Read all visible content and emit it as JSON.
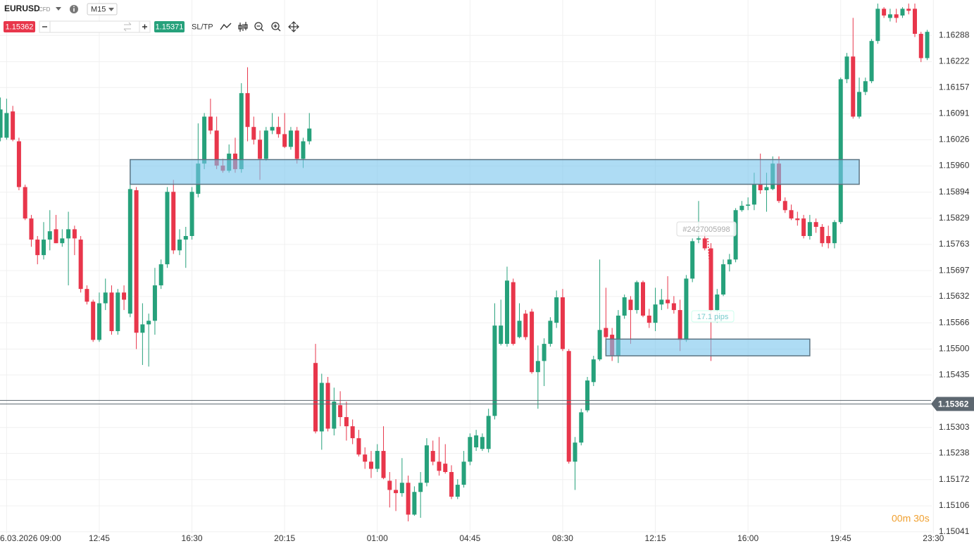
{
  "chart_data": {
    "type": "candlestick",
    "symbol": "EURUSD",
    "symbol_tag": "CFD",
    "timeframe": "M15",
    "bid": 1.15362,
    "ask": 1.15371,
    "sl_tp": "SL/TP",
    "timer": "00m 30s",
    "order_label": "#2427005998",
    "order_pips": "17.1 pips",
    "up_color": "#26a17b",
    "down_color": "#e8364b",
    "grid": true,
    "categories": [
      null,
      "6.03.2026 09:00",
      null,
      null,
      null,
      null,
      null,
      null,
      null,
      null,
      null,
      null,
      null,
      null,
      null,
      null,
      "12:45",
      null,
      null,
      null,
      null,
      null,
      null,
      null,
      null,
      null,
      null,
      null,
      null,
      null,
      null,
      "16:30",
      null,
      null,
      null,
      null,
      null,
      null,
      null,
      null,
      null,
      null,
      null,
      null,
      null,
      null,
      "20:15",
      null,
      null,
      null,
      null,
      null,
      null,
      null,
      null,
      null,
      null,
      null,
      null,
      null,
      null,
      "01:00",
      null,
      null,
      null,
      null,
      null,
      null,
      null,
      null,
      null,
      null,
      null,
      null,
      null,
      null,
      "04:45",
      null,
      null,
      null,
      null,
      null,
      null,
      null,
      null,
      null,
      null,
      null,
      null,
      null,
      null,
      "08:30",
      null,
      null,
      null,
      null,
      null,
      null,
      null,
      null,
      null,
      null,
      null,
      null,
      null,
      null,
      "12:15",
      null,
      null,
      null,
      null,
      null,
      null,
      null,
      null,
      null,
      null,
      null,
      null,
      null,
      null,
      "16:00",
      null,
      null,
      null,
      null,
      null,
      null,
      null,
      null,
      null,
      null,
      null,
      null,
      null,
      null,
      "19:45",
      null,
      null,
      null,
      null,
      null,
      null,
      null,
      null,
      null,
      null,
      null,
      null,
      null,
      null,
      "23:30"
    ],
    "open": [
      1.16031,
      1.16031,
      1.16097,
      1.16022,
      1.15907,
      1.15828,
      1.15775,
      1.15736,
      1.15775,
      1.15801,
      1.15766,
      1.15778,
      1.15801,
      1.15775,
      1.15651,
      1.15619,
      1.15523,
      1.15615,
      1.15642,
      1.15545,
      1.15642,
      1.15589,
      1.15899,
      1.15541,
      1.15562,
      1.15571,
      1.1566,
      1.15713,
      1.15895,
      1.15748,
      1.15775,
      1.15784,
      1.1589,
      1.15966,
      1.16084,
      1.16049,
      1.15961,
      1.15948,
      1.15991,
      1.15952,
      1.16143,
      1.16058,
      1.16026,
      1.15978,
      1.16049,
      1.16058,
      1.1604,
      1.16008,
      1.16049,
      1.15978,
      1.16022,
      1.15465,
      1.15293,
      1.15415,
      1.153,
      1.15359,
      1.15329,
      1.15306,
      1.15276,
      1.15235,
      1.15217,
      1.15199,
      1.15244,
      1.15169,
      1.15146,
      1.15138,
      1.15164,
      1.15084,
      1.15141,
      1.15164,
      1.15244,
      1.15217,
      1.15212,
      1.15191,
      1.15129,
      1.15159,
      1.15217,
      1.15253,
      1.15249,
      1.15249,
      1.15332,
      1.15513,
      1.15513,
      1.15668,
      1.1553,
      1.15589,
      1.15594,
      1.15442,
      1.1547,
      1.15513,
      1.15566,
      1.1563,
      1.15495,
      1.15217,
      1.15265,
      1.15346,
      1.15417,
      1.15474,
      1.15553,
      1.15536,
      1.15483,
      1.15584,
      1.15624,
      1.15598,
      1.15668,
      1.15584,
      1.15566,
      1.15612,
      1.15624,
      1.15615,
      1.15598,
      1.15523,
      1.15677,
      1.15775,
      1.15778,
      1.15753,
      1.15598,
      1.15637,
      1.15713,
      1.15725,
      1.15849,
      1.1586,
      1.15863,
      1.15913,
      1.15899,
      1.15902,
      1.15966,
      1.15872,
      1.15849,
      1.15828,
      1.15828,
      1.15784,
      1.15819,
      1.15807,
      1.15784,
      1.15766,
      1.15819,
      1.16178,
      1.16235,
      1.16084,
      1.16146,
      1.16173,
      1.16274,
      1.16355,
      1.16332,
      1.16341,
      1.16338,
      1.16355,
      1.16355,
      1.16292,
      1.16231,
      null
    ],
    "high": [
      1.16132,
      1.16129,
      1.16111,
      1.16031,
      1.15913,
      1.15837,
      1.15784,
      1.15819,
      1.15849,
      1.15837,
      1.15801,
      1.15845,
      1.1581,
      1.15784,
      1.1566,
      1.15624,
      1.15642,
      1.15677,
      1.1566,
      1.15651,
      1.1566,
      1.15925,
      1.15907,
      1.15615,
      1.15589,
      1.15704,
      1.15725,
      1.15907,
      1.15925,
      1.15801,
      1.15807,
      1.15907,
      1.16067,
      1.16093,
      1.16129,
      1.16084,
      1.15978,
      1.16014,
      1.16031,
      1.16168,
      1.16208,
      1.16084,
      1.16049,
      1.16058,
      1.16093,
      1.16084,
      1.16093,
      1.16058,
      1.16058,
      1.16031,
      1.16093,
      1.15513,
      1.15438,
      1.1543,
      1.15403,
      1.15394,
      1.15368,
      1.15323,
      1.15297,
      1.15253,
      1.15244,
      1.15261,
      1.15306,
      1.15191,
      1.15173,
      1.15226,
      1.15182,
      1.15155,
      1.15191,
      1.15276,
      1.1527,
      1.15279,
      1.15261,
      1.15208,
      1.15173,
      1.15244,
      1.15288,
      1.15297,
      1.15288,
      1.1535,
      1.15615,
      1.15624,
      1.15707,
      1.15677,
      1.15615,
      1.15598,
      1.15601,
      1.15509,
      1.15527,
      1.1558,
      1.15647,
      1.15651,
      1.155,
      1.15279,
      1.1535,
      1.1543,
      1.15483,
      1.15725,
      1.15654,
      1.15553,
      1.15598,
      1.15637,
      1.15633,
      1.15672,
      1.15672,
      1.15601,
      1.15654,
      1.15651,
      1.15683,
      1.15633,
      1.15624,
      1.15686,
      1.15778,
      1.15872,
      1.15792,
      1.15766,
      1.15651,
      1.15725,
      1.15739,
      1.15854,
      1.15872,
      1.15881,
      1.15943,
      1.15991,
      1.15943,
      1.15984,
      1.15984,
      1.15881,
      1.15863,
      1.15845,
      1.15837,
      1.15837,
      1.15828,
      1.15814,
      1.1581,
      1.15824,
      1.16182,
      1.16244,
      1.16332,
      1.16182,
      1.16182,
      1.16279,
      1.16368,
      1.16359,
      1.16355,
      1.16355,
      1.16359,
      1.16368,
      1.16368,
      1.16297,
      1.16302,
      null
    ],
    "low": [
      1.16022,
      1.16026,
      1.16022,
      1.15899,
      1.15824,
      1.15757,
      1.15713,
      1.15725,
      1.15748,
      1.15766,
      1.15757,
      1.1566,
      1.15736,
      1.15642,
      1.15612,
      1.15518,
      1.15518,
      1.15598,
      1.15536,
      1.15536,
      1.15598,
      1.1558,
      1.155,
      1.1546,
      1.15456,
      1.15536,
      1.15651,
      1.15704,
      1.15739,
      1.15736,
      1.15704,
      1.15775,
      1.15881,
      1.15952,
      1.1604,
      1.15952,
      1.15943,
      1.15943,
      1.15943,
      1.15943,
      1.16022,
      1.16014,
      1.15925,
      1.15973,
      1.1604,
      1.16031,
      1.16005,
      1.16001,
      1.15966,
      1.15955,
      1.16014,
      1.15288,
      1.15247,
      1.15293,
      1.15283,
      1.15306,
      1.1527,
      1.15261,
      1.1523,
      1.15199,
      1.15176,
      1.15191,
      1.15173,
      1.15102,
      1.15093,
      1.15129,
      1.15067,
      1.15081,
      1.15076,
      1.15155,
      1.15208,
      1.15182,
      1.15187,
      1.15123,
      1.15123,
      1.15152,
      1.15208,
      1.15244,
      1.15244,
      1.1524,
      1.15323,
      1.15509,
      1.15506,
      1.15509,
      1.15527,
      1.15523,
      1.15438,
      1.1535,
      1.15407,
      1.15506,
      1.15553,
      1.15495,
      1.15212,
      1.15146,
      1.15258,
      1.15341,
      1.15407,
      1.1547,
      1.15491,
      1.1547,
      1.15465,
      1.15576,
      1.15513,
      1.15589,
      1.1558,
      1.15553,
      1.15545,
      1.15598,
      1.15601,
      1.15589,
      1.15495,
      1.15518,
      1.15668,
      1.15766,
      1.15748,
      1.1547,
      1.15566,
      1.15633,
      1.15695,
      1.15718,
      1.15845,
      1.15849,
      1.15849,
      1.1589,
      1.15845,
      1.15899,
      1.15867,
      1.15842,
      1.15824,
      1.1581,
      1.15778,
      1.15775,
      1.15792,
      1.15757,
      1.15753,
      1.15753,
      1.15814,
      1.16168,
      1.16079,
      1.16079,
      1.16138,
      1.16168,
      1.16267,
      1.16332,
      1.16323,
      1.1632,
      1.16332,
      1.16341,
      1.16284,
      1.16221,
      1.16226,
      null
    ],
    "close": [
      1.16102,
      1.16093,
      1.16026,
      1.15907,
      1.15828,
      1.15775,
      1.15736,
      1.15775,
      1.15796,
      1.15766,
      1.15778,
      1.15801,
      1.15778,
      1.15651,
      1.15619,
      1.15523,
      1.15615,
      1.15642,
      1.15545,
      1.15642,
      1.15624,
      1.15902,
      1.15541,
      1.15562,
      1.15571,
      1.1566,
      1.15713,
      1.15895,
      1.15748,
      1.15775,
      1.15784,
      1.15895,
      1.15966,
      1.16084,
      1.16049,
      1.15961,
      1.15948,
      1.15991,
      1.15952,
      1.16143,
      1.16058,
      1.16026,
      1.15978,
      1.16049,
      1.16058,
      1.1604,
      1.16008,
      1.16049,
      1.15978,
      1.16022,
      1.16054,
      1.15293,
      1.15415,
      1.153,
      1.15368,
      1.15329,
      1.15306,
      1.15276,
      1.15235,
      1.15217,
      1.15199,
      1.15244,
      1.15176,
      1.15146,
      1.15138,
      1.15164,
      1.15084,
      1.15141,
      1.15164,
      1.15258,
      1.15217,
      1.15194,
      1.15191,
      1.15129,
      1.15159,
      1.15217,
      1.15279,
      1.15283,
      1.15279,
      1.15332,
      1.15559,
      1.15559,
      1.15672,
      1.15513,
      1.15571,
      1.1553,
      1.15442,
      1.1547,
      1.15513,
      1.15571,
      1.1563,
      1.155,
      1.15217,
      1.15265,
      1.15341,
      1.15421,
      1.15474,
      1.15548,
      1.1553,
      1.15483,
      1.15584,
      1.1563,
      1.15598,
      1.15668,
      1.15584,
      1.15566,
      1.15612,
      1.15624,
      1.15615,
      1.15598,
      1.15523,
      1.15677,
      1.15771,
      1.15778,
      1.15753,
      1.15598,
      1.15637,
      1.15713,
      1.15725,
      1.15849,
      1.1586,
      1.15863,
      1.15913,
      1.15899,
      1.15907,
      1.15966,
      1.15872,
      1.15849,
      1.15828,
      1.15824,
      1.15784,
      1.15819,
      1.15807,
      1.15766,
      1.15766,
      1.15819,
      1.16178,
      1.16235,
      1.16084,
      1.16146,
      1.16173,
      1.16274,
      1.16355,
      1.16338,
      1.16341,
      1.16332,
      1.16355,
      1.1635,
      1.16292,
      1.16231,
      1.16297,
      null
    ],
    "zones": [
      {
        "start": 21,
        "end": 139,
        "top": 1.15976,
        "bottom": 1.15914
      },
      {
        "start": 98,
        "end": 131,
        "top": 1.15525,
        "bottom": 1.15483
      }
    ],
    "ylim": [
      1.15037,
      1.16377
    ],
    "yticks": [
      1.16288,
      1.16222,
      1.16157,
      1.16091,
      1.16026,
      {
        "value": 1.1596,
        "label": "1.15960"
      },
      1.15894,
      1.15829,
      1.15763,
      1.15697,
      1.15632,
      1.15566,
      {
        "value": 1.155,
        "label": "1.15500"
      },
      1.15435,
      1.15303,
      1.15238,
      1.15172,
      1.15106,
      1.15041
    ]
  }
}
